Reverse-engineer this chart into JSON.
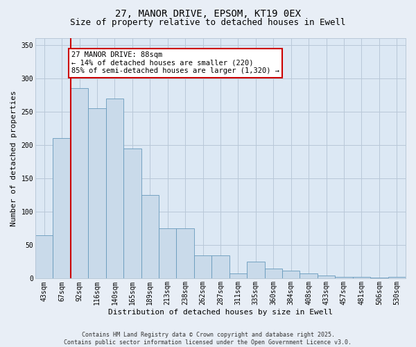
{
  "title_line1": "27, MANOR DRIVE, EPSOM, KT19 0EX",
  "title_line2": "Size of property relative to detached houses in Ewell",
  "xlabel": "Distribution of detached houses by size in Ewell",
  "ylabel": "Number of detached properties",
  "categories": [
    "43sqm",
    "67sqm",
    "92sqm",
    "116sqm",
    "140sqm",
    "165sqm",
    "189sqm",
    "213sqm",
    "238sqm",
    "262sqm",
    "287sqm",
    "311sqm",
    "335sqm",
    "360sqm",
    "384sqm",
    "408sqm",
    "433sqm",
    "457sqm",
    "481sqm",
    "506sqm",
    "530sqm"
  ],
  "values": [
    65,
    210,
    285,
    255,
    270,
    195,
    125,
    75,
    75,
    35,
    35,
    8,
    25,
    15,
    12,
    8,
    5,
    3,
    2,
    1,
    3
  ],
  "bar_color": "#c9daea",
  "bar_edge_color": "#6699bb",
  "red_line_x": 1.5,
  "annotation_text": "27 MANOR DRIVE: 88sqm\n← 14% of detached houses are smaller (220)\n85% of semi-detached houses are larger (1,320) →",
  "annotation_box_color": "#ffffff",
  "annotation_box_edge_color": "#cc0000",
  "footer_text": "Contains HM Land Registry data © Crown copyright and database right 2025.\nContains public sector information licensed under the Open Government Licence v3.0.",
  "ylim": [
    0,
    360
  ],
  "yticks": [
    0,
    50,
    100,
    150,
    200,
    250,
    300,
    350
  ],
  "background_color": "#e8eef6",
  "plot_bg_color": "#dce8f4",
  "grid_color": "#b8c8d8",
  "red_line_color": "#cc0000",
  "title_fontsize": 10,
  "subtitle_fontsize": 9,
  "tick_fontsize": 7,
  "axis_label_fontsize": 8,
  "annotation_fontsize": 7.5,
  "footer_fontsize": 6
}
